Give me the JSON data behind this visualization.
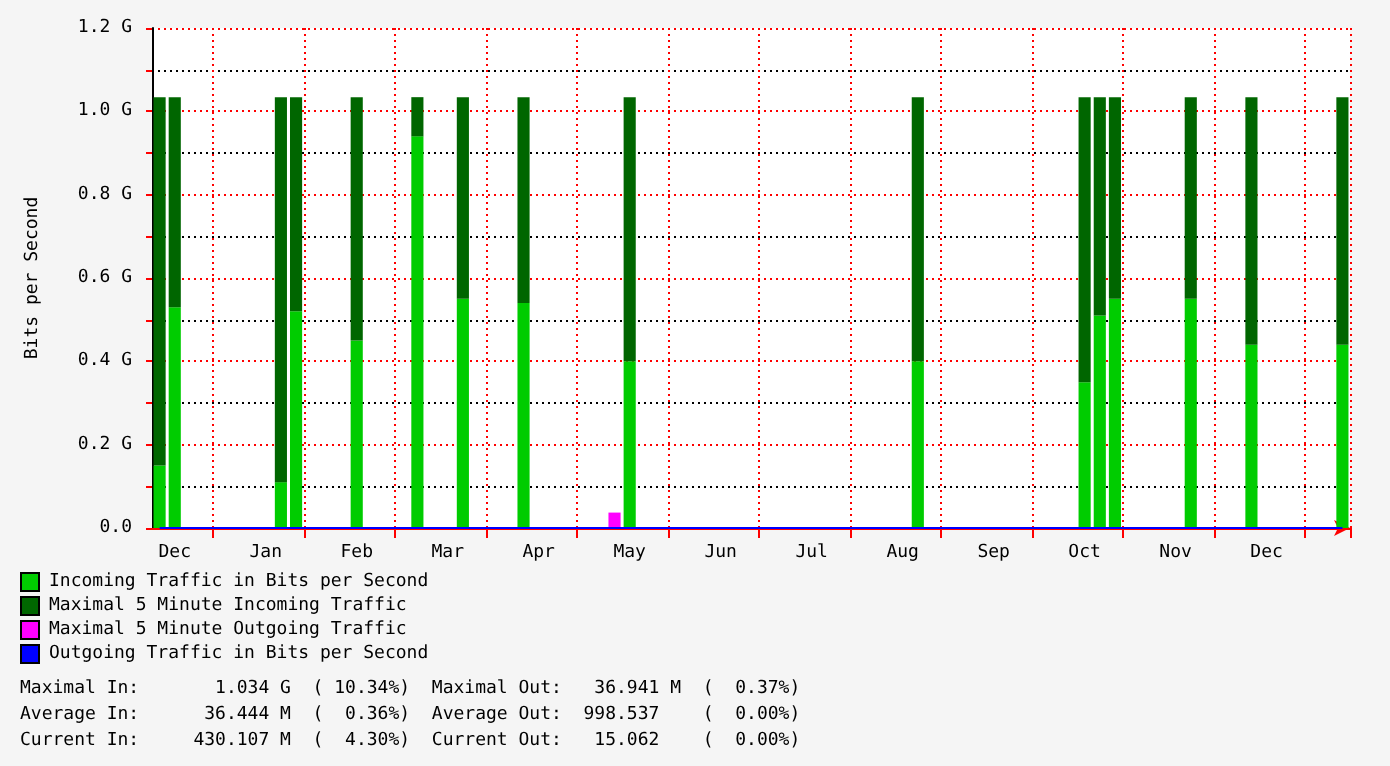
{
  "chart_data": {
    "type": "bar",
    "ylabel": "Bits per Second",
    "stacked": true,
    "categories": [
      null,
      "Dec",
      null,
      null,
      null,
      null,
      null,
      "Jan",
      null,
      null,
      null,
      null,
      null,
      "Feb",
      null,
      null,
      null,
      null,
      null,
      "Mar",
      null,
      null,
      null,
      null,
      null,
      "Apr",
      null,
      null,
      null,
      null,
      null,
      "May",
      null,
      null,
      null,
      null,
      null,
      "Jun",
      null,
      null,
      null,
      null,
      null,
      "Jul",
      null,
      null,
      null,
      null,
      null,
      "Aug",
      null,
      null,
      null,
      null,
      null,
      "Sep",
      null,
      null,
      null,
      null,
      null,
      "Oct",
      null,
      null,
      null,
      null,
      null,
      "Nov",
      null,
      null,
      null,
      null,
      null,
      "Dec",
      null,
      null,
      null,
      null,
      null
    ],
    "ylim": [
      0,
      1.2
    ],
    "yticks": [
      {
        "value": 0,
        "label": "0.0"
      },
      {
        "value": 0.1,
        "label": null
      },
      {
        "value": 0.2,
        "label": "0.2 G"
      },
      {
        "value": 0.3,
        "label": null
      },
      {
        "value": 0.4,
        "label": "0.4 G"
      },
      {
        "value": 0.5,
        "label": null
      },
      {
        "value": 0.6,
        "label": "0.6 G"
      },
      {
        "value": 0.7,
        "label": null
      },
      {
        "value": 0.8,
        "label": "0.8 G"
      },
      {
        "value": 0.9,
        "label": null
      },
      {
        "value": 1.0,
        "label": "1.0 G"
      },
      {
        "value": 1.1,
        "label": null
      },
      {
        "value": 1.2,
        "label": "1.2 G"
      }
    ],
    "grid": true,
    "legend": "bottom left",
    "series": [
      {
        "name": "Incoming Traffic in Bits per Second",
        "color": "#00cc00",
        "values": [
          0.15,
          0.53,
          null,
          null,
          null,
          null,
          null,
          null,
          0.11,
          0.52,
          null,
          null,
          null,
          0.45,
          null,
          null,
          null,
          0.94,
          null,
          null,
          0.55,
          null,
          null,
          null,
          0.54,
          null,
          null,
          null,
          null,
          null,
          null,
          0.4,
          null,
          null,
          null,
          null,
          null,
          null,
          null,
          null,
          null,
          null,
          null,
          null,
          null,
          null,
          null,
          null,
          null,
          null,
          0.4,
          null,
          null,
          null,
          null,
          null,
          null,
          null,
          null,
          null,
          null,
          0.35,
          0.51,
          0.55,
          null,
          null,
          null,
          null,
          0.55,
          null,
          null,
          null,
          0.44,
          null,
          null,
          null,
          null,
          null,
          0.44
        ]
      },
      {
        "name": "Maximal 5 Minute Incoming Traffic",
        "color": "#006600",
        "values": [
          0.884,
          0.504,
          null,
          null,
          null,
          null,
          null,
          null,
          0.924,
          0.514,
          null,
          null,
          null,
          0.584,
          null,
          null,
          null,
          0.094,
          null,
          null,
          0.484,
          null,
          null,
          null,
          0.494,
          null,
          null,
          null,
          null,
          null,
          null,
          0.634,
          null,
          null,
          null,
          null,
          null,
          null,
          null,
          null,
          null,
          null,
          null,
          null,
          null,
          null,
          null,
          null,
          null,
          null,
          0.634,
          null,
          null,
          null,
          null,
          null,
          null,
          null,
          null,
          null,
          null,
          0.684,
          0.524,
          0.484,
          null,
          null,
          null,
          null,
          0.484,
          null,
          null,
          null,
          0.594,
          null,
          null,
          null,
          null,
          null,
          0.594
        ]
      },
      {
        "name": "Maximal 5 Minute Outgoing Traffic",
        "color": "#ff00ff",
        "values": [
          null,
          null,
          null,
          null,
          null,
          null,
          null,
          null,
          null,
          null,
          null,
          null,
          null,
          null,
          null,
          null,
          null,
          null,
          null,
          null,
          null,
          null,
          null,
          null,
          null,
          null,
          null,
          null,
          null,
          null,
          0.037,
          null,
          null,
          null,
          null,
          null,
          null,
          null,
          null,
          null,
          null,
          null,
          null,
          null,
          null,
          null,
          null,
          null,
          null,
          null,
          null,
          null,
          null,
          null,
          null,
          null,
          null,
          null,
          null,
          null,
          null,
          null,
          null,
          null,
          null,
          null,
          null,
          null,
          null,
          null,
          null,
          null,
          null,
          null,
          null,
          null,
          null,
          null,
          null
        ]
      },
      {
        "name": "Outgoing Traffic in Bits per Second",
        "color": "#0000ff",
        "type": "line",
        "values": [
          0,
          0,
          0,
          0,
          0,
          0,
          0,
          0,
          0,
          0,
          0,
          0,
          0,
          0,
          0,
          0,
          0,
          0,
          0,
          0,
          0,
          0,
          0,
          0,
          0,
          0,
          0,
          0,
          0,
          0,
          0,
          0,
          0,
          0,
          0,
          0,
          0,
          0,
          0,
          0,
          0,
          0,
          0,
          0,
          0,
          0,
          0,
          0,
          0,
          0,
          0,
          0,
          0,
          0,
          0,
          0,
          0,
          0,
          0,
          0,
          0,
          0,
          0,
          0,
          0,
          0,
          0,
          0,
          0,
          0,
          0,
          0,
          0,
          0,
          0,
          0,
          0,
          0,
          0
        ]
      }
    ],
    "annotations": [
      "Maximal In:       1.034 G  ( 10.34%)  Maximal Out:   36.941 M  (  0.37%)",
      "Average In:      36.444 M  (  0.36%)  Average Out:  998.537    (  0.00%)",
      "Current In:     430.107 M  (  4.30%)  Current Out:   15.062    (  0.00%)"
    ]
  }
}
